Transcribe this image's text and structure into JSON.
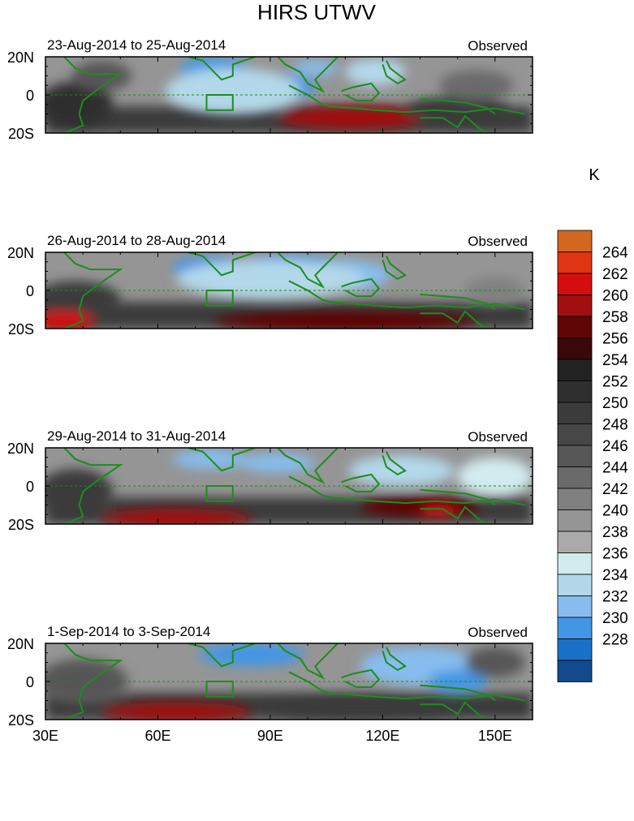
{
  "figure": {
    "title": "HIRS UTWV",
    "colorbar_unit": "K",
    "colorbar_levels": [
      228,
      230,
      232,
      234,
      236,
      238,
      240,
      242,
      244,
      246,
      248,
      250,
      252,
      254,
      256,
      258,
      260,
      262,
      264
    ],
    "colorbar_colors": [
      "#1c1c80",
      "#144a8e",
      "#1a71c8",
      "#4296e4",
      "#86bdee",
      "#b2d8ea",
      "#d2ebef",
      "#aaaaaa",
      "#959595",
      "#808080",
      "#6a6a6a",
      "#575757",
      "#474747",
      "#3b3b3b",
      "#2f2f2f",
      "#222222",
      "#3a0808",
      "#600606",
      "#a01010",
      "#d40e0e",
      "#e03412",
      "#d26820"
    ]
  },
  "chart_data": [
    {
      "type": "heatmap",
      "label": "23-Aug-2014 to 25-Aug-2014",
      "right_label": "Observed",
      "xlim": [
        30,
        160
      ],
      "ylim": [
        -20,
        20
      ],
      "xticks": [
        "30E",
        "60E",
        "90E",
        "120E",
        "150E"
      ],
      "yticks": [
        "20N",
        "0",
        "20S"
      ],
      "blobs": [
        {
          "lon": 38,
          "lat": -5,
          "rx": 10,
          "ry": 12,
          "value": 252
        },
        {
          "lon": 45,
          "lat": 10,
          "rx": 8,
          "ry": 8,
          "value": 246
        },
        {
          "lon": 75,
          "lat": 14,
          "rx": 9,
          "ry": 6,
          "value": 231
        },
        {
          "lon": 92,
          "lat": 4,
          "rx": 10,
          "ry": 7,
          "value": 231
        },
        {
          "lon": 80,
          "lat": 2,
          "rx": 18,
          "ry": 12,
          "value": 235
        },
        {
          "lon": 102,
          "lat": 14,
          "rx": 6,
          "ry": 4,
          "value": 233
        },
        {
          "lon": 118,
          "lat": 12,
          "rx": 8,
          "ry": 7,
          "value": 234
        },
        {
          "lon": 112,
          "lat": -12,
          "rx": 20,
          "ry": 6,
          "value": 261
        },
        {
          "lon": 140,
          "lat": -8,
          "rx": 14,
          "ry": 7,
          "value": 250
        },
        {
          "lon": 145,
          "lat": 5,
          "rx": 10,
          "ry": 8,
          "value": 244
        }
      ]
    },
    {
      "type": "heatmap",
      "label": "26-Aug-2014 to 28-Aug-2014",
      "right_label": "Observed",
      "xlim": [
        30,
        160
      ],
      "ylim": [
        -20,
        20
      ],
      "xticks": [
        "30E",
        "60E",
        "90E",
        "120E",
        "150E"
      ],
      "yticks": [
        "20N",
        "0",
        "20S"
      ],
      "blobs": [
        {
          "lon": 38,
          "lat": -5,
          "rx": 12,
          "ry": 10,
          "value": 250
        },
        {
          "lon": 35,
          "lat": -16,
          "rx": 8,
          "ry": 5,
          "value": 263
        },
        {
          "lon": 74,
          "lat": 12,
          "rx": 10,
          "ry": 6,
          "value": 231
        },
        {
          "lon": 95,
          "lat": 12,
          "rx": 14,
          "ry": 7,
          "value": 231
        },
        {
          "lon": 110,
          "lat": 8,
          "rx": 12,
          "ry": 8,
          "value": 233
        },
        {
          "lon": 90,
          "lat": 6,
          "rx": 25,
          "ry": 10,
          "value": 235
        },
        {
          "lon": 110,
          "lat": -16,
          "rx": 35,
          "ry": 5,
          "value": 258
        },
        {
          "lon": 150,
          "lat": 0,
          "rx": 8,
          "ry": 7,
          "value": 243
        }
      ]
    },
    {
      "type": "heatmap",
      "label": "29-Aug-2014 to 31-Aug-2014",
      "right_label": "Observed",
      "xlim": [
        30,
        160
      ],
      "ylim": [
        -20,
        20
      ],
      "xticks": [
        "30E",
        "60E",
        "90E",
        "120E",
        "150E"
      ],
      "yticks": [
        "20N",
        "0",
        "20S"
      ],
      "blobs": [
        {
          "lon": 38,
          "lat": -3,
          "rx": 10,
          "ry": 12,
          "value": 250
        },
        {
          "lon": 65,
          "lat": -17,
          "rx": 20,
          "ry": 5,
          "value": 261
        },
        {
          "lon": 74,
          "lat": 14,
          "rx": 10,
          "ry": 5,
          "value": 232
        },
        {
          "lon": 92,
          "lat": 12,
          "rx": 10,
          "ry": 5,
          "value": 233
        },
        {
          "lon": 125,
          "lat": 8,
          "rx": 14,
          "ry": 8,
          "value": 234
        },
        {
          "lon": 130,
          "lat": -11,
          "rx": 16,
          "ry": 5,
          "value": 259
        },
        {
          "lon": 135,
          "lat": -13,
          "rx": 5,
          "ry": 3,
          "value": 262
        },
        {
          "lon": 150,
          "lat": 5,
          "rx": 10,
          "ry": 10,
          "value": 236
        }
      ]
    },
    {
      "type": "heatmap",
      "label": "1-Sep-2014 to 3-Sep-2014",
      "right_label": "Observed",
      "xlim": [
        30,
        160
      ],
      "ylim": [
        -20,
        20
      ],
      "xticks": [
        "30E",
        "60E",
        "90E",
        "120E",
        "150E"
      ],
      "yticks": [
        "20N",
        "0",
        "20S"
      ],
      "blobs": [
        {
          "lon": 40,
          "lat": 0,
          "rx": 12,
          "ry": 12,
          "value": 246
        },
        {
          "lon": 65,
          "lat": -16,
          "rx": 20,
          "ry": 5,
          "value": 261
        },
        {
          "lon": 85,
          "lat": 14,
          "rx": 14,
          "ry": 6,
          "value": 231
        },
        {
          "lon": 130,
          "lat": 8,
          "rx": 16,
          "ry": 10,
          "value": 232
        },
        {
          "lon": 140,
          "lat": 0,
          "rx": 8,
          "ry": 6,
          "value": 231
        },
        {
          "lon": 115,
          "lat": -14,
          "rx": 25,
          "ry": 5,
          "value": 250
        },
        {
          "lon": 150,
          "lat": 10,
          "rx": 8,
          "ry": 8,
          "value": 246
        }
      ]
    }
  ]
}
